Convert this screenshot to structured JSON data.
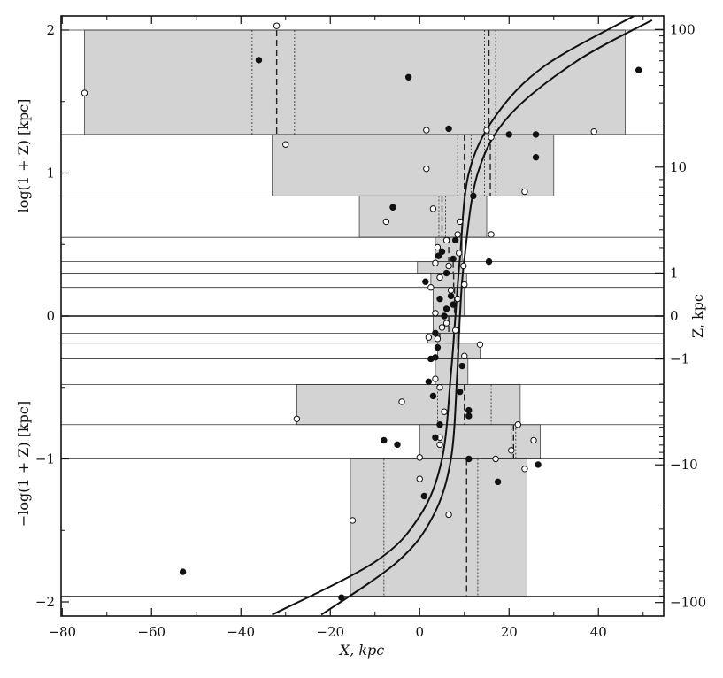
{
  "chart_data": {
    "type": "scatter",
    "x_axis": {
      "label": "X, kpc",
      "range": [
        -80,
        55
      ],
      "ticks": [
        -80,
        -60,
        -40,
        -20,
        0,
        20,
        40
      ],
      "tick_labels": [
        "−80",
        "−60",
        "−40",
        "−20",
        "0",
        "20",
        "40"
      ]
    },
    "y_axis_left": {
      "label_upper": "log(1 + Z) [kpc]",
      "label_lower": "−log(1 + Z) [kpc]",
      "range": [
        -2.1,
        2.1
      ],
      "ticks": [
        -2,
        -1,
        0,
        1,
        2
      ],
      "tick_labels": [
        "−2",
        "−1",
        "0",
        "1",
        "2"
      ]
    },
    "y_axis_right": {
      "label": "Z, kpc",
      "scale": "signed log(1+|Z|)",
      "labeled_ticks_Z": [
        100,
        10,
        1,
        0,
        -1,
        -10,
        -100
      ],
      "tick_labels": [
        "100",
        "10",
        "1",
        "0",
        "−1",
        "−10",
        "−100"
      ],
      "minor_ticks_Z": [
        2,
        3,
        4,
        5,
        6,
        7,
        8,
        9,
        20,
        30,
        40,
        50,
        60,
        70,
        80,
        90,
        -2,
        -3,
        -4,
        -5,
        -6,
        -7,
        -8,
        -9,
        -20,
        -30,
        -40,
        -50,
        -60,
        -70,
        -80,
        -90
      ]
    },
    "layer_boundaries": [
      2,
      1.27,
      0.84,
      0.55,
      0.38,
      0.3,
      0.2,
      0.0,
      -0.12,
      -0.19,
      -0.3,
      -0.48,
      -0.76,
      -1.0,
      -1.96
    ],
    "bins": [
      {
        "y_range": [
          1.27,
          2.0
        ],
        "x_range": [
          -75,
          46
        ],
        "mean_x": -32,
        "sigma_x": [
          -37.5,
          -28
        ],
        "mean2": 15.5,
        "sigma2": [
          14.5,
          17
        ]
      },
      {
        "y_range": [
          0.84,
          1.27
        ],
        "x_range": [
          -33,
          30
        ],
        "mean_x": 10,
        "sigma_x": [
          8.5,
          11.5
        ],
        "mean2": 15.8,
        "sigma2": [
          14.5,
          17
        ]
      },
      {
        "y_range": [
          0.55,
          0.84
        ],
        "x_range": [
          -13.5,
          15
        ],
        "mean_x": 5,
        "sigma_x": [
          4.3,
          5.8
        ]
      },
      {
        "y_range": [
          0.38,
          0.55
        ],
        "x_range": [
          3.5,
          9.5
        ],
        "mean_x": 6.5
      },
      {
        "y_range": [
          0.3,
          0.38
        ],
        "x_range": [
          -0.5,
          9.8
        ],
        "mean_x": 7.5
      },
      {
        "y_range": [
          0.2,
          0.3
        ],
        "x_range": [
          2.5,
          10.5
        ],
        "mean_x": 7.6
      },
      {
        "y_range": [
          0.0,
          0.2
        ],
        "x_range": [
          3.0,
          10.0
        ],
        "mean_x": 7.8
      },
      {
        "y_range": [
          -0.12,
          0.0
        ],
        "x_range": [
          3.0,
          9.0
        ],
        "mean_x": 6.5
      },
      {
        "y_range": [
          -0.19,
          -0.12
        ],
        "x_range": [
          1.8,
          8.3
        ],
        "mean_x": 4.5
      },
      {
        "y_range": [
          -0.3,
          -0.19
        ],
        "x_range": [
          4.0,
          13.5
        ],
        "mean_x": 8.5
      },
      {
        "y_range": [
          -0.48,
          -0.3
        ],
        "x_range": [
          3.5,
          10.8
        ],
        "mean_x": 8.5
      },
      {
        "y_range": [
          -0.76,
          -0.48
        ],
        "x_range": [
          -27.5,
          22.5
        ],
        "mean_x": 10,
        "sigma_x": [
          4,
          16
        ]
      },
      {
        "y_range": [
          -1.0,
          -0.76
        ],
        "x_range": [
          0,
          27
        ],
        "mean_x": 21,
        "sigma_x": [
          20.5,
          21.5
        ]
      },
      {
        "y_range": [
          -1.96,
          -1.0
        ],
        "x_range": [
          -15.5,
          24
        ],
        "mean_x": 10.5,
        "sigma_x": [
          -8,
          13
        ]
      }
    ],
    "curves": [
      {
        "name": "inner",
        "points": [
          [
            -33,
            -2.09
          ],
          [
            -10,
            -1.72
          ],
          [
            0,
            -1.4
          ],
          [
            5,
            -1.0
          ],
          [
            7,
            -0.4
          ],
          [
            8,
            0
          ],
          [
            9,
            0.4
          ],
          [
            11,
            1.0
          ],
          [
            17,
            1.4
          ],
          [
            28,
            1.75
          ],
          [
            48,
            2.1
          ]
        ]
      },
      {
        "name": "outer",
        "points": [
          [
            -22,
            -2.09
          ],
          [
            -5,
            -1.72
          ],
          [
            3,
            -1.4
          ],
          [
            7,
            -1.0
          ],
          [
            8.4,
            -0.4
          ],
          [
            9,
            0
          ],
          [
            10,
            0.4
          ],
          [
            13,
            1.0
          ],
          [
            20,
            1.4
          ],
          [
            35,
            1.78
          ],
          [
            52,
            2.07
          ]
        ]
      }
    ],
    "points_open": [
      [
        -75,
        1.56
      ],
      [
        -32,
        2.03
      ],
      [
        -30,
        1.2
      ],
      [
        -7.5,
        0.66
      ],
      [
        1.5,
        1.3
      ],
      [
        1.5,
        1.03
      ],
      [
        3,
        0.75
      ],
      [
        15,
        1.3
      ],
      [
        16,
        1.25
      ],
      [
        16,
        0.57
      ],
      [
        23.5,
        0.87
      ],
      [
        39,
        1.29
      ],
      [
        9,
        0.66
      ],
      [
        8.5,
        0.57
      ],
      [
        6,
        0.53
      ],
      [
        4,
        0.48
      ],
      [
        8.8,
        0.44
      ],
      [
        3.5,
        0.37
      ],
      [
        6.5,
        0.35
      ],
      [
        9.8,
        0.35
      ],
      [
        4.5,
        0.27
      ],
      [
        10,
        0.22
      ],
      [
        2.5,
        0.2
      ],
      [
        7,
        0.18
      ],
      [
        8.5,
        0.12
      ],
      [
        3.5,
        0.02
      ],
      [
        6,
        -0.05
      ],
      [
        5,
        -0.08
      ],
      [
        8,
        -0.1
      ],
      [
        2,
        -0.15
      ],
      [
        4,
        -0.16
      ],
      [
        13.5,
        -0.2
      ],
      [
        10,
        -0.28
      ],
      [
        3.5,
        -0.44
      ],
      [
        4.5,
        -0.5
      ],
      [
        -4,
        -0.6
      ],
      [
        -27.5,
        -0.72
      ],
      [
        5.5,
        -0.67
      ],
      [
        4.5,
        -0.85
      ],
      [
        4.5,
        -0.9
      ],
      [
        22,
        -0.76
      ],
      [
        20.5,
        -0.94
      ],
      [
        25.5,
        -0.87
      ],
      [
        17,
        -1.0
      ],
      [
        0,
        -0.99
      ],
      [
        0,
        -1.14
      ],
      [
        23.5,
        -1.07
      ],
      [
        -15,
        -1.43
      ],
      [
        6.5,
        -1.39
      ]
    ],
    "points_filled": [
      [
        -36,
        1.79
      ],
      [
        -2.5,
        1.67
      ],
      [
        6.5,
        1.31
      ],
      [
        20,
        1.27
      ],
      [
        26,
        1.27
      ],
      [
        26,
        1.11
      ],
      [
        12,
        0.84
      ],
      [
        -6,
        0.76
      ],
      [
        15.5,
        0.38
      ],
      [
        8,
        0.53
      ],
      [
        5,
        0.45
      ],
      [
        4.2,
        0.42
      ],
      [
        7.5,
        0.4
      ],
      [
        1.3,
        0.24
      ],
      [
        6,
        0.3
      ],
      [
        4.5,
        0.12
      ],
      [
        7.5,
        0.08
      ],
      [
        6,
        0.05
      ],
      [
        5.5,
        0.0
      ],
      [
        3.5,
        -0.12
      ],
      [
        4,
        -0.22
      ],
      [
        2.5,
        -0.3
      ],
      [
        3.5,
        -0.29
      ],
      [
        9.5,
        -0.35
      ],
      [
        2,
        -0.46
      ],
      [
        3,
        -0.56
      ],
      [
        9,
        -0.53
      ],
      [
        -8,
        -0.87
      ],
      [
        -5,
        -0.9
      ],
      [
        3.5,
        -0.85
      ],
      [
        4.5,
        -0.76
      ],
      [
        11,
        -0.66
      ],
      [
        11,
        -0.7
      ],
      [
        11,
        -1.0
      ],
      [
        26.5,
        -1.04
      ],
      [
        17.5,
        -1.16
      ],
      [
        1,
        -1.26
      ],
      [
        -53,
        -1.79
      ],
      [
        -17.5,
        -1.97
      ],
      [
        49,
        1.72
      ],
      [
        7,
        0.14
      ]
    ]
  }
}
